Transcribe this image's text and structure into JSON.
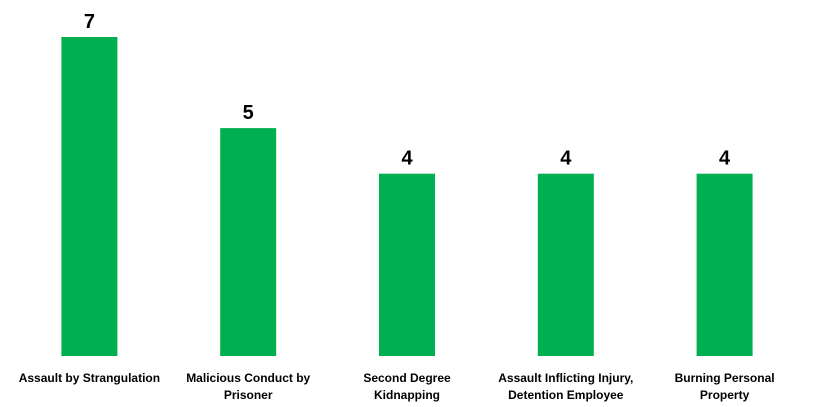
{
  "chart_data": {
    "type": "bar",
    "categories": [
      [
        "Assault by Strangulation"
      ],
      [
        "Malicious Conduct by",
        "Prisoner"
      ],
      [
        "Second Degree",
        "Kidnapping"
      ],
      [
        "Assault Inflicting Injury,",
        "Detention Employee"
      ],
      [
        "Burning Personal",
        "Property"
      ]
    ],
    "values": [
      7,
      5,
      4,
      4,
      4
    ],
    "title": "",
    "xlabel": "",
    "ylabel": "",
    "ylim": [
      0,
      7
    ],
    "grid": false,
    "legend": "none",
    "data_labels": true,
    "bar_color": "#00b050"
  }
}
